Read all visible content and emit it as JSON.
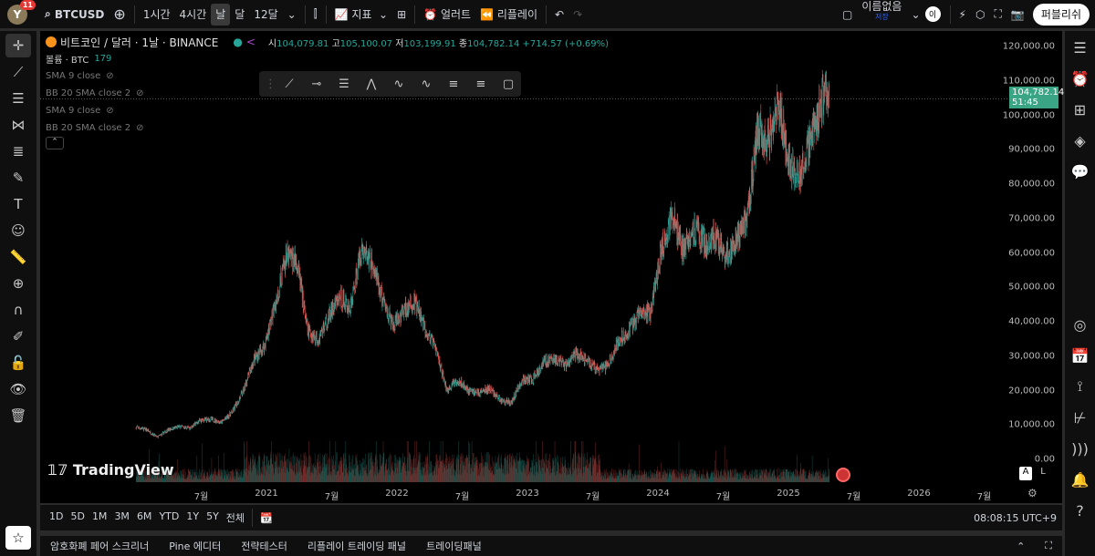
{
  "toolbar": {
    "avatar": "Y",
    "notifications": "11",
    "symbol": "BTCUSD",
    "intervals": [
      "1시간",
      "4시간",
      "날",
      "달",
      "12달"
    ],
    "active_interval": "날",
    "indicators": "지표",
    "alert": "얼러트",
    "replay": "리플레이",
    "layout_name": "이름없음",
    "save": "저장",
    "user_initial": "이",
    "publish": "퍼블리쉬"
  },
  "legend": {
    "title": "비트코인 / 달러 · 1날 · BINANCE",
    "open_label": "시",
    "open": "104,079.81",
    "high_label": "고",
    "high": "105,100.07",
    "low_label": "저",
    "low": "103,199.91",
    "close_label": "종",
    "close": "104,782.14",
    "change": "+714.57 (+0.69%)",
    "volume_label": "볼륨 · BTC",
    "volume": "179",
    "indicators": [
      "SMA 9 close",
      "BB 20 SMA close 2",
      "SMA 9 close",
      "BB 20 SMA close 2"
    ]
  },
  "price_axis": {
    "labels": [
      "120,000.00",
      "110,000.00",
      "100,000.00",
      "90,000.00",
      "80,000.00",
      "70,000.00",
      "60,000.00",
      "50,000.00",
      "40,000.00",
      "30,000.00",
      "20,000.00",
      "10,000.00",
      "0.00"
    ],
    "current_price": "104,782.14",
    "countdown": "51:45",
    "scale_auto": "A",
    "scale_log": "L"
  },
  "time_axis": {
    "labels": [
      "7월",
      "2021",
      "7월",
      "2022",
      "7월",
      "2023",
      "7월",
      "2024",
      "7월",
      "2025",
      "7월",
      "2026",
      "7월"
    ]
  },
  "watermark": "TradingView",
  "colors": {
    "up": "#26a69a",
    "down": "#ef5350",
    "background": "#000000",
    "price_tag": "#3aa585"
  },
  "chart_data": {
    "type": "candlestick",
    "ylim": [
      0,
      120000
    ],
    "x_start": "2020-01",
    "monthly_close": [
      9350,
      8600,
      6400,
      8600,
      9450,
      9140,
      11300,
      11650,
      10780,
      13800,
      19700,
      29000,
      33100,
      45200,
      58800,
      57700,
      37300,
      35000,
      41500,
      47100,
      43800,
      61300,
      57000,
      46300,
      38500,
      43200,
      45500,
      37700,
      31800,
      19900,
      23300,
      20000,
      19400,
      20500,
      17200,
      16500,
      23100,
      23100,
      28500,
      29200,
      27200,
      30500,
      29200,
      25900,
      27000,
      34600,
      37700,
      42300,
      42600,
      61100,
      71300,
      60600,
      67500,
      62700,
      64600,
      59000,
      63300,
      70200,
      96400,
      93400,
      102400,
      84300,
      82500,
      94200,
      104782
    ]
  },
  "range_bar": {
    "ranges": [
      "1D",
      "5D",
      "1M",
      "3M",
      "6M",
      "YTD",
      "1Y",
      "5Y",
      "전체"
    ],
    "clock": "08:08:15 UTC+9"
  },
  "bottom_tabs": [
    "암호화폐 페어 스크리너",
    "Pine 에디터",
    "전략테스터",
    "리플레이 트레이딩 패널",
    "트레이딩패널"
  ]
}
